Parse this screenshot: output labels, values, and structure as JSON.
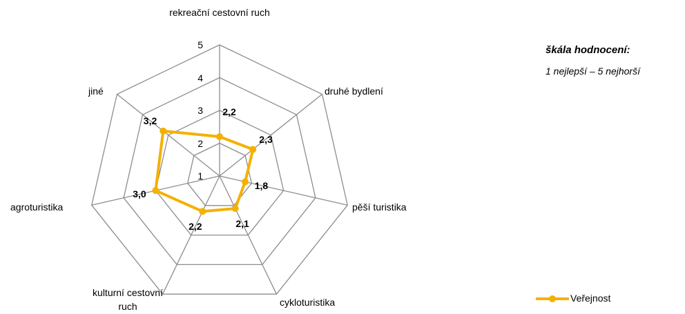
{
  "chart_data": {
    "type": "radar",
    "categories": [
      "rekreační cestovní ruch",
      "druhé bydlení",
      "pěší turistika",
      "cykloturistika",
      "kulturní cestovní ruch",
      "agroturistika",
      "jiné"
    ],
    "series": [
      {
        "name": "Veřejnost",
        "color": "#f5b000",
        "values": [
          2.2,
          2.3,
          1.8,
          2.1,
          2.2,
          3.0,
          3.2
        ],
        "value_labels": [
          "2,2",
          "2,3",
          "1,8",
          "2,1",
          "2,2",
          "3,0",
          "3,2"
        ]
      }
    ],
    "ylim": [
      1,
      5
    ],
    "yticks": [
      1,
      2,
      3,
      4,
      5
    ],
    "grid": true,
    "annotations": [
      "škála hodnocení:",
      "1 nejlepší – 5 nejhorší"
    ],
    "legend": "bottom-right"
  }
}
